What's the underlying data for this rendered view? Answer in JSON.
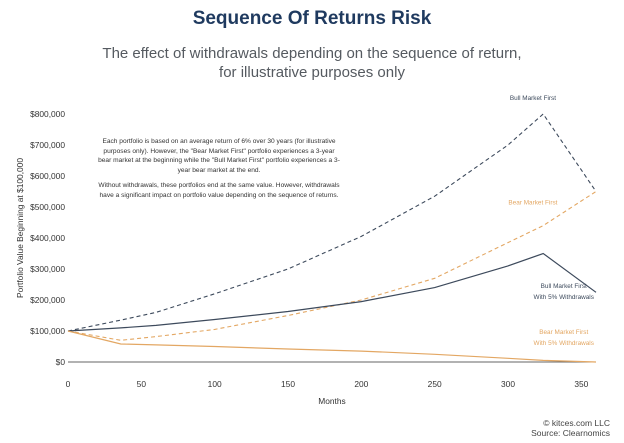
{
  "title": "Sequence Of Returns Risk",
  "subtitle_lines": [
    "The effect of withdrawals depending on the sequence of return,",
    "for illustrative purposes only"
  ],
  "note": {
    "paragraph1": "Each portfolio is based on an average return of 6% over 30 years (for illustrative purposes only). However, the \"Bear Market First\" portfolio experiences a 3-year bear market at the beginning while the \"Bull Market First\" portfolio experiences a 3-year bear market at the end.",
    "paragraph2": "Without withdrawals, these portfolios end at the same value. However, withdrawals have a significant impact on portfolio value depending on the sequence of returns."
  },
  "credit": {
    "line1": "© kitces.com LLC",
    "line2": "Source: Clearnomics"
  },
  "colors": {
    "bull": "#3d4a5c",
    "bear": "#e3a763",
    "title": "#1f3a5f"
  },
  "chart_data": {
    "type": "line",
    "xlabel": "Months",
    "ylabel": "Portfolio Value Beginning at $100,000",
    "xlim": [
      0,
      360
    ],
    "ylim": [
      0,
      800000
    ],
    "x_ticks": [
      0,
      50,
      100,
      150,
      200,
      250,
      300,
      350
    ],
    "y_ticks": [
      0,
      100000,
      200000,
      300000,
      400000,
      500000,
      600000,
      700000,
      800000
    ],
    "y_tick_labels": [
      "$0",
      "$100,000",
      "$200,000",
      "$300,000",
      "$400,000",
      "$500,000",
      "$600,000",
      "$700,000",
      "$800,000"
    ],
    "grid": false,
    "series": [
      {
        "name": "Bull Market First",
        "style": "dashed",
        "color": "#3d4a5c",
        "x": [
          0,
          36,
          60,
          100,
          150,
          200,
          250,
          300,
          324,
          360
        ],
        "y": [
          100000,
          135000,
          160000,
          220000,
          300000,
          405000,
          535000,
          700000,
          800000,
          550000
        ]
      },
      {
        "name": "Bear Market First",
        "style": "dashed",
        "color": "#e3a763",
        "x": [
          0,
          36,
          60,
          100,
          150,
          200,
          250,
          300,
          324,
          360
        ],
        "y": [
          100000,
          70000,
          82000,
          105000,
          150000,
          200000,
          270000,
          385000,
          440000,
          550000
        ]
      },
      {
        "name": "Bull Market First With 5% Withdrawals",
        "style": "solid",
        "color": "#3d4a5c",
        "x": [
          0,
          36,
          60,
          100,
          150,
          200,
          250,
          300,
          324,
          360
        ],
        "y": [
          100000,
          110000,
          118000,
          137000,
          163000,
          195000,
          240000,
          310000,
          350000,
          225000
        ]
      },
      {
        "name": "Bear Market First With 5% Withdrawals",
        "style": "solid",
        "color": "#e3a763",
        "x": [
          0,
          36,
          60,
          100,
          150,
          200,
          250,
          300,
          324,
          360
        ],
        "y": [
          100000,
          58000,
          55000,
          50000,
          42000,
          35000,
          25000,
          12000,
          5000,
          0
        ]
      }
    ],
    "labels": [
      {
        "series": 0,
        "lines": [
          "Bull Market First"
        ]
      },
      {
        "series": 1,
        "lines": [
          "Bear Market First"
        ]
      },
      {
        "series": 2,
        "lines": [
          "Bull Market First",
          "With 5% Withdrawals"
        ]
      },
      {
        "series": 3,
        "lines": [
          "Bear Market First",
          "With 5% Withdrawals"
        ]
      }
    ]
  }
}
